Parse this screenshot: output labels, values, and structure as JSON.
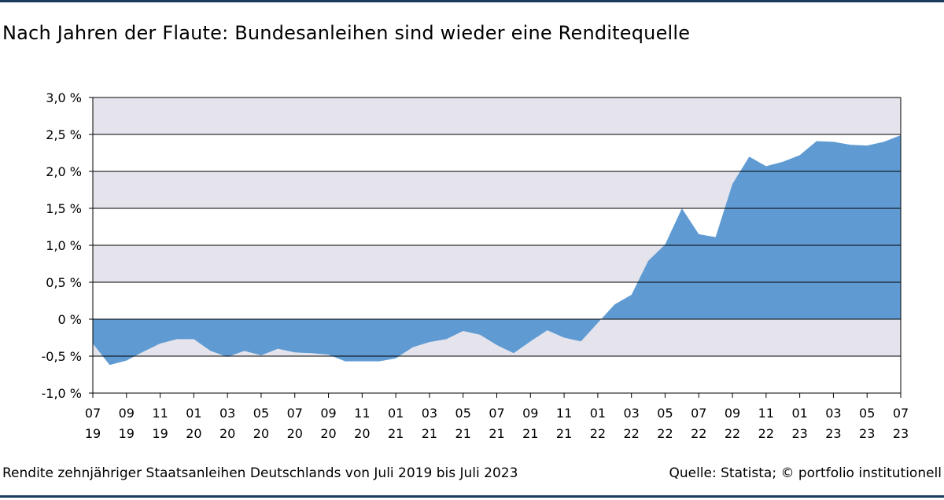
{
  "header": {
    "title": "Nach Jahren der Flaute: Bundesanleihen sind wieder eine Renditequelle"
  },
  "footer": {
    "description": "Rendite zehnjähriger Staatsanleihen Deutschlands von Juli 2019 bis Juli 2023",
    "source": "Quelle: Statista; © portfolio institutionell"
  },
  "chart_data": {
    "type": "area",
    "title": "Nach Jahren der Flaute: Bundesanleihen sind wieder eine Renditequelle",
    "xlabel": "",
    "ylabel": "",
    "ylim": [
      -1.0,
      3.0
    ],
    "grid": true,
    "fill_color": "#5f9bd2",
    "band_color": "#e5e4ed",
    "y_ticks": [
      {
        "value": 3.0,
        "label": "3,0 %"
      },
      {
        "value": 2.5,
        "label": "2,5 %"
      },
      {
        "value": 2.0,
        "label": "2,0 %"
      },
      {
        "value": 1.5,
        "label": "1,5 %"
      },
      {
        "value": 1.0,
        "label": "1,0 %"
      },
      {
        "value": 0.5,
        "label": "0,5 %"
      },
      {
        "value": 0.0,
        "label": "0 %"
      },
      {
        "value": -0.5,
        "label": "-0,5 %"
      },
      {
        "value": -1.0,
        "label": "-1,0 %"
      }
    ],
    "x_ticks": [
      {
        "month": "07",
        "year": "19"
      },
      {
        "month": "09",
        "year": "19"
      },
      {
        "month": "11",
        "year": "19"
      },
      {
        "month": "01",
        "year": "20"
      },
      {
        "month": "03",
        "year": "20"
      },
      {
        "month": "05",
        "year": "20"
      },
      {
        "month": "07",
        "year": "20"
      },
      {
        "month": "09",
        "year": "20"
      },
      {
        "month": "11",
        "year": "20"
      },
      {
        "month": "01",
        "year": "21"
      },
      {
        "month": "03",
        "year": "21"
      },
      {
        "month": "05",
        "year": "21"
      },
      {
        "month": "07",
        "year": "21"
      },
      {
        "month": "09",
        "year": "21"
      },
      {
        "month": "11",
        "year": "21"
      },
      {
        "month": "01",
        "year": "22"
      },
      {
        "month": "03",
        "year": "22"
      },
      {
        "month": "05",
        "year": "22"
      },
      {
        "month": "07",
        "year": "22"
      },
      {
        "month": "09",
        "year": "22"
      },
      {
        "month": "11",
        "year": "22"
      },
      {
        "month": "01",
        "year": "23"
      },
      {
        "month": "03",
        "year": "23"
      },
      {
        "month": "05",
        "year": "23"
      },
      {
        "month": "07",
        "year": "23"
      }
    ],
    "x": [
      "2019-07",
      "2019-08",
      "2019-09",
      "2019-10",
      "2019-11",
      "2019-12",
      "2020-01",
      "2020-02",
      "2020-03",
      "2020-04",
      "2020-05",
      "2020-06",
      "2020-07",
      "2020-08",
      "2020-09",
      "2020-10",
      "2020-11",
      "2020-12",
      "2021-01",
      "2021-02",
      "2021-03",
      "2021-04",
      "2021-05",
      "2021-06",
      "2021-07",
      "2021-08",
      "2021-09",
      "2021-10",
      "2021-11",
      "2021-12",
      "2022-01",
      "2022-02",
      "2022-03",
      "2022-04",
      "2022-05",
      "2022-06",
      "2022-07",
      "2022-08",
      "2022-09",
      "2022-10",
      "2022-11",
      "2022-12",
      "2023-01",
      "2023-02",
      "2023-03",
      "2023-04",
      "2023-05",
      "2023-06",
      "2023-07"
    ],
    "values": [
      -0.33,
      -0.62,
      -0.56,
      -0.44,
      -0.33,
      -0.27,
      -0.27,
      -0.43,
      -0.51,
      -0.43,
      -0.49,
      -0.4,
      -0.45,
      -0.46,
      -0.48,
      -0.57,
      -0.57,
      -0.57,
      -0.53,
      -0.38,
      -0.31,
      -0.27,
      -0.16,
      -0.21,
      -0.35,
      -0.46,
      -0.3,
      -0.15,
      -0.25,
      -0.3,
      -0.05,
      0.2,
      0.33,
      0.79,
      1.01,
      1.5,
      1.15,
      1.11,
      1.83,
      2.2,
      2.07,
      2.13,
      2.22,
      2.41,
      2.4,
      2.36,
      2.35,
      2.4,
      2.49
    ]
  }
}
